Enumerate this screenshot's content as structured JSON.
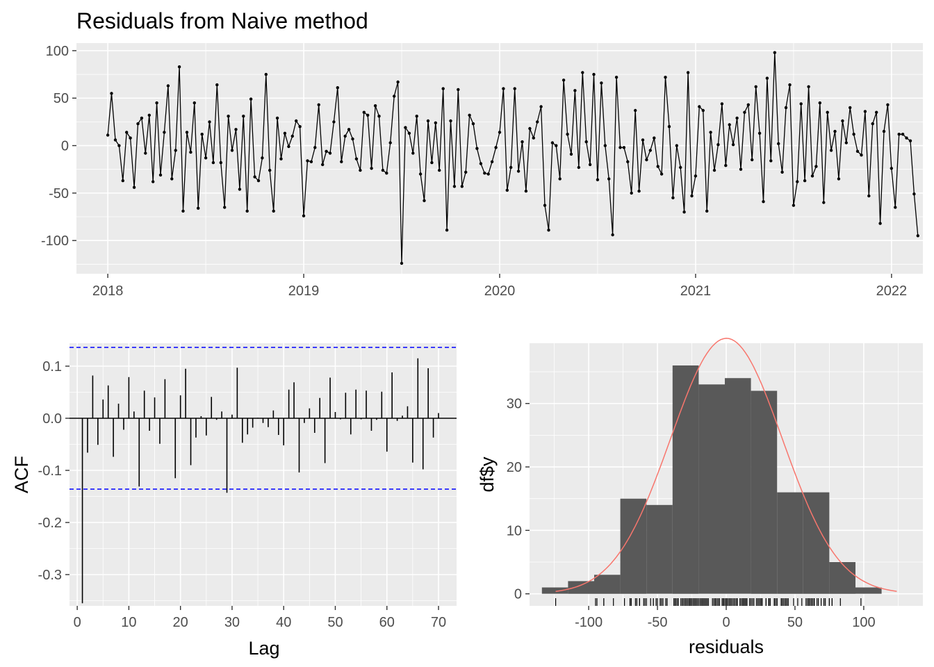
{
  "figure": {
    "title": "Residuals from Naive method"
  },
  "chart_data": [
    {
      "type": "line",
      "panel": "residual-time-series",
      "title": "Residuals from Naive method",
      "xlabel": "",
      "ylabel": "",
      "x_start": 2018.0,
      "x_step": 0.01923,
      "x_ticks": [
        "2018",
        "2019",
        "2020",
        "2021",
        "2022"
      ],
      "y_ticks": [
        "100",
        "50",
        "0",
        "-50",
        "-100"
      ],
      "y_tick_values": [
        100,
        50,
        0,
        -50,
        -100
      ],
      "xlim": [
        2017.84,
        2022.16
      ],
      "ylim": [
        -135,
        108
      ],
      "grid": true,
      "markers": true,
      "values": [
        11,
        55,
        6,
        0,
        -37,
        14,
        8,
        -44,
        23,
        29,
        -8,
        32,
        -38,
        45,
        -31,
        14,
        63,
        -35,
        -5,
        83,
        -69,
        14,
        -7,
        45,
        -66,
        12,
        -13,
        25,
        -18,
        64,
        -18,
        -65,
        31,
        -5,
        17,
        -46,
        31,
        -69,
        49,
        -33,
        -37,
        -13,
        75,
        -26,
        -69,
        29,
        -14,
        13,
        -1,
        10,
        26,
        20,
        -74,
        -16,
        -17,
        -2,
        43,
        -20,
        -6,
        -8,
        25,
        61,
        -17,
        10,
        17,
        7,
        -14,
        -26,
        35,
        32,
        -24,
        42,
        31,
        -26,
        -29,
        3,
        52,
        67,
        -124,
        19,
        13,
        -8,
        31,
        -30,
        -58,
        26,
        -18,
        24,
        -26,
        60,
        -89,
        26,
        -43,
        59,
        -43,
        -28,
        32,
        23,
        -3,
        -19,
        -29,
        -30,
        -17,
        -2,
        14,
        60,
        -47,
        -23,
        60,
        -27,
        4,
        -48,
        18,
        8,
        25,
        41,
        -63,
        -89,
        3,
        0,
        -35,
        69,
        12,
        -9,
        58,
        -23,
        77,
        4,
        -20,
        75,
        -36,
        66,
        0,
        -35,
        -94,
        72,
        -2,
        -2,
        -17,
        -50,
        37,
        -48,
        6,
        -15,
        -5,
        8,
        -22,
        -30,
        72,
        20,
        -55,
        0,
        -23,
        -70,
        77,
        -53,
        -32,
        41,
        37,
        -69,
        14,
        -26,
        1,
        44,
        -21,
        22,
        1,
        29,
        -25,
        35,
        43,
        -15,
        62,
        13,
        -59,
        71,
        -16,
        98,
        2,
        -28,
        40,
        64,
        -63,
        -38,
        44,
        -37,
        62,
        -32,
        -22,
        45,
        -60,
        35,
        -5,
        15,
        -35,
        26,
        3,
        40,
        12,
        -6,
        -10,
        36,
        -53,
        23,
        35,
        -82,
        15,
        43,
        -24,
        -65,
        12,
        12,
        8,
        5,
        -51,
        -95
      ]
    },
    {
      "type": "bar",
      "panel": "acf",
      "xlabel": "Lag",
      "ylabel": "ACF",
      "x_ticks": [
        "0",
        "10",
        "20",
        "30",
        "40",
        "50",
        "60",
        "70"
      ],
      "y_ticks": [
        "0.1",
        "0.0",
        "-0.1",
        "-0.2",
        "-0.3"
      ],
      "y_tick_values": [
        0.1,
        0.0,
        -0.1,
        -0.2,
        -0.3
      ],
      "xlim": [
        -1.5,
        73.5
      ],
      "ylim": [
        -0.36,
        0.144
      ],
      "confidence_limit": 0.136,
      "lags": [
        1,
        2,
        3,
        4,
        5,
        6,
        7,
        8,
        9,
        10,
        11,
        12,
        13,
        14,
        15,
        16,
        17,
        18,
        19,
        20,
        21,
        22,
        23,
        24,
        25,
        26,
        27,
        28,
        29,
        30,
        31,
        32,
        33,
        34,
        35,
        36,
        37,
        38,
        39,
        40,
        41,
        42,
        43,
        44,
        45,
        46,
        47,
        48,
        49,
        50,
        51,
        52,
        53,
        54,
        55,
        56,
        57,
        58,
        59,
        60,
        61,
        62,
        63,
        64,
        65,
        66,
        67,
        68,
        69,
        70
      ],
      "values": [
        -0.355,
        -0.066,
        0.082,
        -0.051,
        0.036,
        0.063,
        -0.074,
        0.028,
        -0.022,
        0.079,
        0.013,
        -0.131,
        0.053,
        -0.024,
        0.04,
        -0.049,
        0.075,
        0.0,
        -0.115,
        0.044,
        0.095,
        -0.09,
        -0.037,
        0.004,
        -0.033,
        0.041,
        -0.003,
        0.013,
        -0.143,
        0.007,
        0.097,
        -0.047,
        -0.031,
        -0.018,
        0.001,
        -0.009,
        -0.017,
        0.015,
        -0.032,
        -0.052,
        0.055,
        0.069,
        -0.104,
        -0.009,
        0.019,
        -0.028,
        0.039,
        -0.086,
        0.078,
        0.012,
        -0.002,
        0.049,
        -0.031,
        0.055,
        -0.002,
        0.053,
        -0.024,
        -0.003,
        0.051,
        -0.064,
        0.088,
        -0.005,
        0.005,
        0.023,
        -0.085,
        0.115,
        -0.098,
        0.096,
        -0.037,
        0.01
      ]
    },
    {
      "type": "bar",
      "panel": "histogram",
      "xlabel": "residuals",
      "ylabel": "df$y",
      "x_ticks": [
        "-100",
        "-50",
        "0",
        "50",
        "100"
      ],
      "x_tick_values": [
        -100,
        -50,
        0,
        50,
        100
      ],
      "y_ticks": [
        "30",
        "20",
        "10",
        "0"
      ],
      "y_tick_values": [
        30,
        20,
        10,
        0
      ],
      "xlim": [
        -143,
        143
      ],
      "ylim": [
        -1.9,
        39.5
      ],
      "bin_edges": [
        -134,
        -115,
        -96,
        -77,
        -58,
        -39,
        -20,
        -1,
        18,
        37,
        56,
        75,
        94,
        113
      ],
      "values": [
        1,
        2,
        3,
        15,
        14,
        36,
        33,
        34,
        32,
        16,
        16,
        5,
        1
      ],
      "density_line": true,
      "density_color": "#f8766d",
      "rug": true
    }
  ]
}
